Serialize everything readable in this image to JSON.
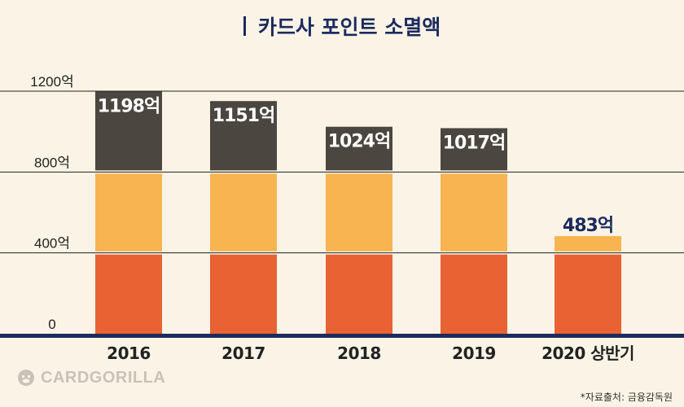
{
  "chart_data": {
    "type": "bar",
    "title": "카드사 포인트 소멸액",
    "categories": [
      "2016",
      "2017",
      "2018",
      "2019",
      "2020 상반기"
    ],
    "values": [
      1198,
      1151,
      1024,
      1017,
      483
    ],
    "value_labels": [
      "1198억",
      "1151억",
      "1024억",
      "1017억",
      "483억"
    ],
    "ylim": [
      0,
      1200
    ],
    "yticks": [
      0,
      400,
      800,
      1200
    ],
    "ytick_labels": [
      "0",
      "400억",
      "800억",
      "1200억"
    ],
    "grid": true,
    "segment_bounds": [
      0,
      400,
      800
    ],
    "colors": {
      "band_low": "#e86233",
      "band_mid": "#f7b450",
      "band_top": "#4b4740",
      "axis": "#1c2a5e",
      "label_light": "#ffffff",
      "label_dark": "#1c2a5e"
    }
  },
  "brand": {
    "logo_text": "CARDGORILLA"
  },
  "footer": {
    "source": "*자료출처: 금융감독원"
  }
}
